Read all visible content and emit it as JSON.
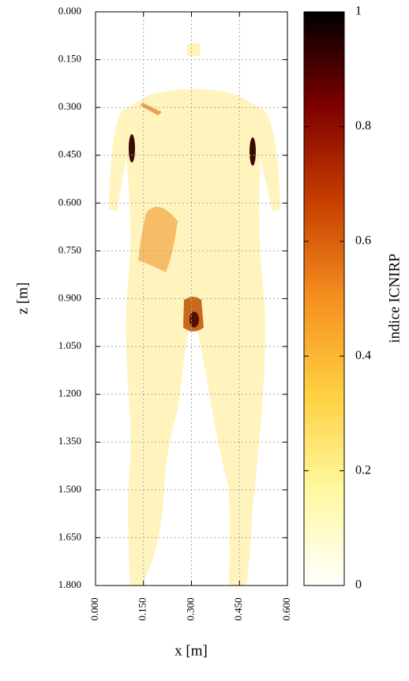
{
  "chart_data": {
    "type": "heatmap",
    "xlabel": "x [m]",
    "ylabel": "z [m]",
    "colorbar_label": "indice ICNIRP",
    "xlim": [
      0,
      0.6
    ],
    "xticks": [
      {
        "value": 0,
        "label": "0.000"
      },
      {
        "value": 0.15,
        "label": "0.150"
      },
      {
        "value": 0.3,
        "label": "0.300"
      },
      {
        "value": 0.45,
        "label": "0.450"
      },
      {
        "value": 0.6,
        "label": "0.600"
      }
    ],
    "ylim": [
      1.8,
      0
    ],
    "yticks": [
      {
        "value": 0,
        "label": "0.000"
      },
      {
        "value": 0.15,
        "label": "0.150"
      },
      {
        "value": 0.3,
        "label": "0.300"
      },
      {
        "value": 0.45,
        "label": "0.450"
      },
      {
        "value": 0.6,
        "label": "0.600"
      },
      {
        "value": 0.75,
        "label": "0.750"
      },
      {
        "value": 0.9,
        "label": "0.900"
      },
      {
        "value": 1.05,
        "label": "1.050"
      },
      {
        "value": 1.2,
        "label": "1.200"
      },
      {
        "value": 1.35,
        "label": "1.350"
      },
      {
        "value": 1.5,
        "label": "1.500"
      },
      {
        "value": 1.65,
        "label": "1.650"
      },
      {
        "value": 1.8,
        "label": "1.800"
      }
    ],
    "clim": [
      0,
      1
    ],
    "cticks": [
      0,
      0.2,
      0.4,
      0.6,
      0.8,
      1
    ],
    "colormap": [
      "#ffffff",
      "#fff9a0",
      "#ffd040",
      "#f59020",
      "#c84000",
      "#800000",
      "#000000"
    ],
    "grid": true
  }
}
